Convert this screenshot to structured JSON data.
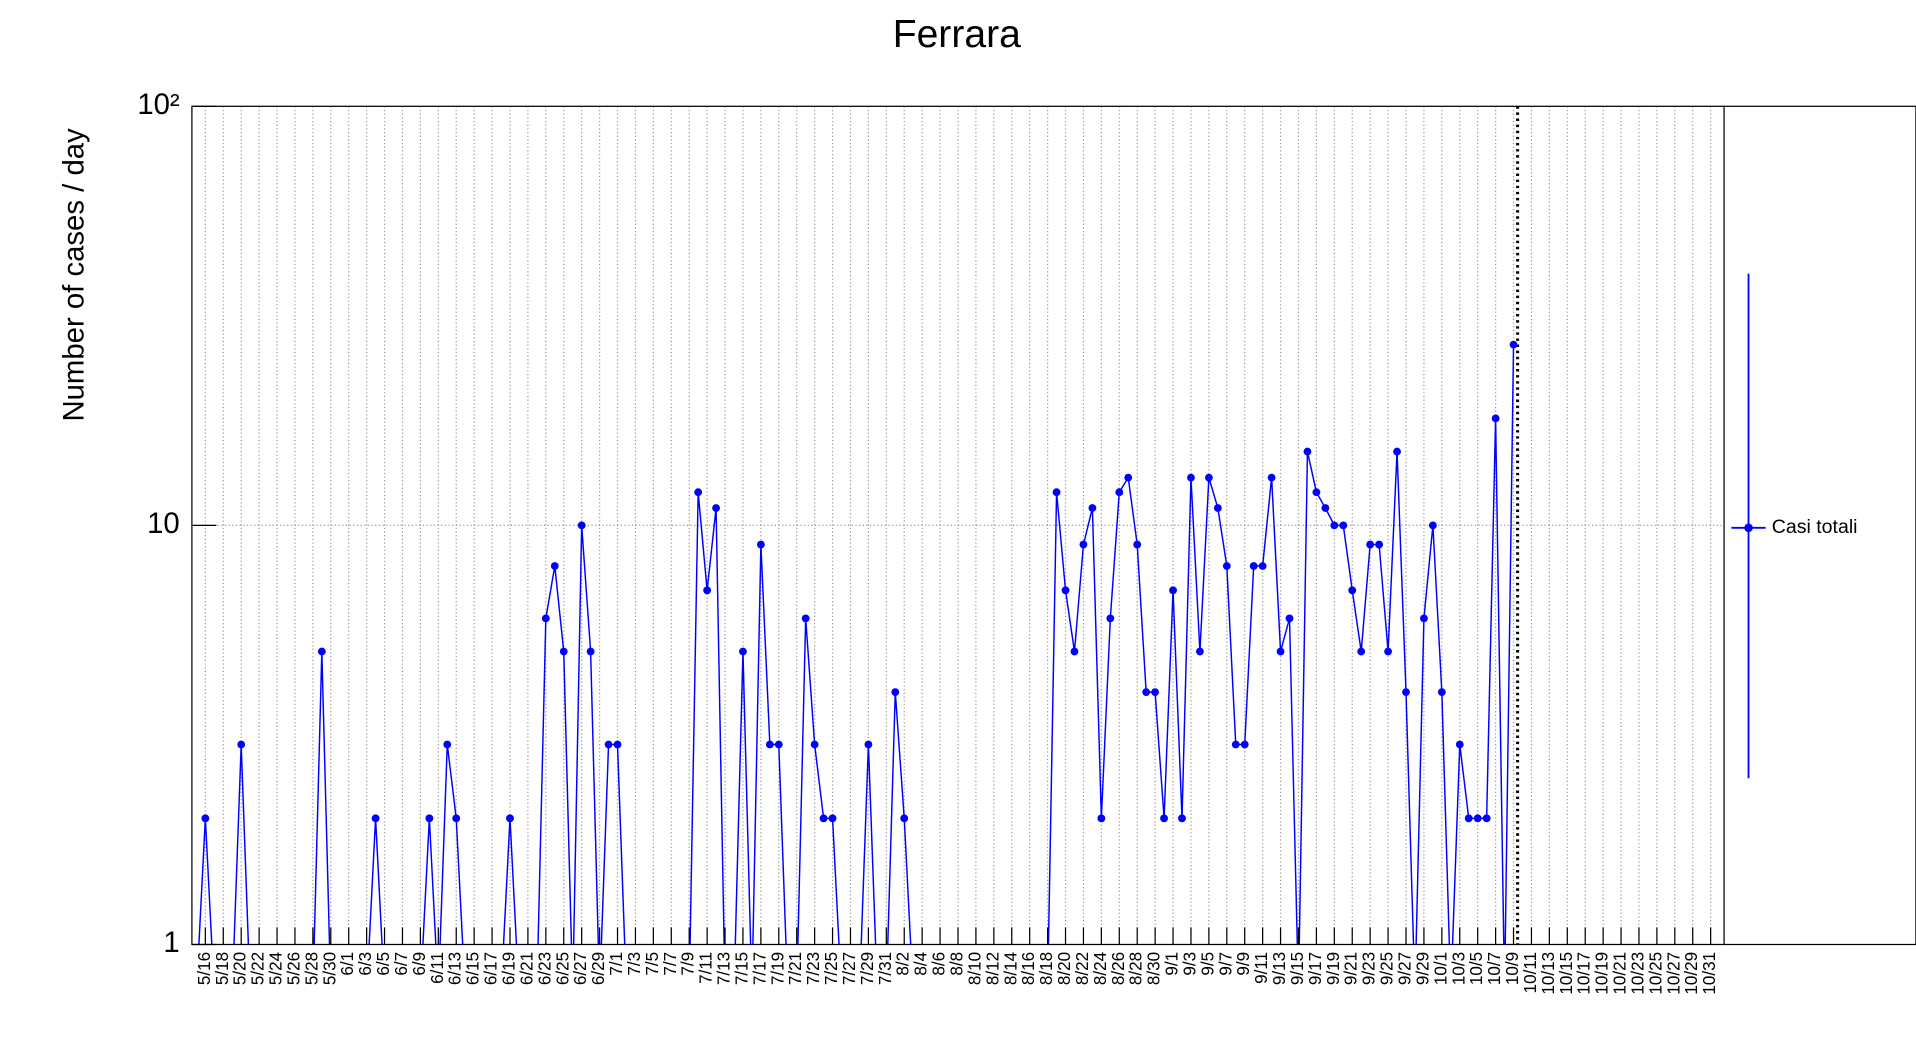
{
  "chart_data": {
    "type": "line",
    "title": "Ferrara",
    "y_label": "Number of cases / day",
    "log_y": true,
    "grid": true,
    "legend": "right",
    "ylim": [
      1,
      100
    ],
    "yticks": [
      1,
      10,
      {
        "value": 100,
        "label": "10²"
      }
    ],
    "categories": [
      null,
      "5/16",
      null,
      "5/18",
      null,
      "5/20",
      null,
      "5/22",
      null,
      "5/24",
      null,
      "5/26",
      null,
      "5/28",
      null,
      "5/30",
      null,
      "6/1",
      null,
      "6/3",
      null,
      "6/5",
      null,
      "6/7",
      null,
      "6/9",
      null,
      "6/11",
      null,
      "6/13",
      null,
      "6/15",
      null,
      "6/17",
      null,
      "6/19",
      null,
      "6/21",
      null,
      "6/23",
      null,
      "6/25",
      null,
      "6/27",
      null,
      "6/29",
      null,
      "7/1",
      null,
      "7/3",
      null,
      "7/5",
      null,
      "7/7",
      null,
      "7/9",
      null,
      "7/11",
      null,
      "7/13",
      null,
      "7/15",
      null,
      "7/17",
      null,
      "7/19",
      null,
      "7/21",
      null,
      "7/23",
      null,
      "7/25",
      null,
      "7/27",
      null,
      "7/29",
      null,
      "7/31",
      null,
      "8/2",
      null,
      "8/4",
      null,
      "8/6",
      null,
      "8/8",
      null,
      "8/10",
      null,
      "8/12",
      null,
      "8/14",
      null,
      "8/16",
      null,
      "8/18",
      null,
      "8/20",
      null,
      "8/22",
      null,
      "8/24",
      null,
      "8/26",
      null,
      "8/28",
      null,
      "8/30",
      null,
      "9/1",
      null,
      "9/3",
      null,
      "9/5",
      null,
      "9/7",
      null,
      "9/9",
      null,
      "9/11",
      null,
      "9/13",
      null,
      "9/15",
      null,
      "9/17",
      null,
      "9/19",
      null,
      "9/21",
      null,
      "9/23",
      null,
      "9/25",
      null,
      "9/27",
      null,
      "9/29",
      null,
      "10/1",
      null,
      "10/3",
      null,
      "10/5",
      null,
      "10/7",
      null,
      "10/9",
      null,
      "10/11",
      null,
      "10/13",
      null,
      "10/15",
      null,
      "10/17",
      null,
      "10/19",
      null,
      "10/21",
      null,
      "10/23",
      null,
      "10/25",
      null,
      "10/27",
      null,
      "10/29",
      null,
      "10/31",
      null
    ],
    "series": [
      {
        "name": "Casi totali",
        "color": "#0000ff",
        "values": [
          0,
          2,
          0,
          0,
          0,
          3,
          0,
          0,
          0,
          0,
          0,
          0,
          0,
          0,
          5,
          0,
          0,
          0,
          0,
          0,
          2,
          0,
          0,
          0,
          0,
          0,
          2,
          0,
          3,
          2,
          0,
          0,
          0,
          0,
          0,
          2,
          0,
          0,
          0,
          6,
          8,
          5,
          0,
          10,
          5,
          0,
          3,
          3,
          0,
          0,
          0,
          0,
          0,
          0,
          0,
          0,
          12,
          7,
          11,
          0,
          0,
          5,
          0,
          9,
          3,
          3,
          0,
          0,
          6,
          3,
          2,
          2,
          0,
          0,
          0,
          3,
          0,
          0,
          4,
          2,
          0,
          0,
          0,
          0,
          0,
          0,
          0,
          0,
          0,
          0,
          0,
          0,
          0,
          0,
          0,
          0,
          12,
          7,
          5,
          9,
          11,
          2,
          6,
          12,
          13,
          9,
          4,
          4,
          2,
          7,
          2,
          13,
          5,
          13,
          11,
          8,
          3,
          3,
          8,
          8,
          13,
          5,
          6,
          0,
          15,
          12,
          11,
          10,
          10,
          7,
          5,
          9,
          9,
          5,
          15,
          4,
          0,
          6,
          10,
          4,
          0,
          3,
          2,
          2,
          2,
          18,
          0,
          27,
          null,
          null,
          null,
          null,
          null,
          null,
          null,
          null,
          null,
          null,
          null,
          null,
          null,
          null,
          null,
          null,
          null,
          null,
          null,
          null,
          null,
          null,
          null
        ]
      }
    ]
  }
}
